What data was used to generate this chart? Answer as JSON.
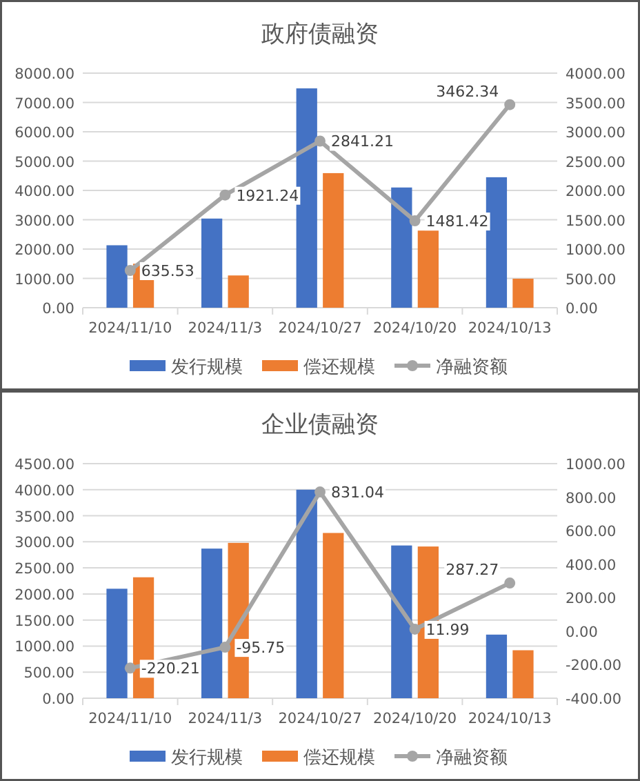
{
  "chart_data": [
    {
      "type": "bar",
      "title": "政府债融资",
      "categories": [
        "2024/11/10",
        "2024/11/3",
        "2024/10/27",
        "2024/10/20",
        "2024/10/13"
      ],
      "series": [
        {
          "name": "发行规模",
          "color": "#4472c4",
          "values": [
            2130,
            3040,
            7480,
            4100,
            4450
          ]
        },
        {
          "name": "偿还规模",
          "color": "#ed7d31",
          "values": [
            1500,
            1100,
            4590,
            2630,
            990
          ]
        },
        {
          "name": "净融资额",
          "type": "line",
          "axis": "y2",
          "color": "#a5a5a5",
          "marker": "circle",
          "values": [
            635.53,
            1921.24,
            2841.21,
            1481.42,
            3462.34
          ],
          "value_labels": [
            "635.53",
            "1921.24",
            "2841.21",
            "1481.42",
            "3462.34"
          ]
        }
      ],
      "ylim": [
        0,
        8000
      ],
      "yticks": [
        {
          "value": 0,
          "label": "0.00"
        },
        {
          "value": 1000,
          "label": "1000.00"
        },
        {
          "value": 2000,
          "label": "2000.00"
        },
        {
          "value": 3000,
          "label": "3000.00"
        },
        {
          "value": 4000,
          "label": "4000.00"
        },
        {
          "value": 5000,
          "label": "5000.00"
        },
        {
          "value": 6000,
          "label": "6000.00"
        },
        {
          "value": 7000,
          "label": "7000.00"
        },
        {
          "value": 8000,
          "label": "8000.00"
        }
      ],
      "y2lim": [
        0,
        4000
      ],
      "y2ticks": [
        {
          "value": 0,
          "label": "0.00"
        },
        {
          "value": 500,
          "label": "500.00"
        },
        {
          "value": 1000,
          "label": "1000.00"
        },
        {
          "value": 1500,
          "label": "1500.00"
        },
        {
          "value": 2000,
          "label": "2000.00"
        },
        {
          "value": 2500,
          "label": "2500.00"
        },
        {
          "value": 3000,
          "label": "3000.00"
        },
        {
          "value": 3500,
          "label": "3500.00"
        },
        {
          "value": 4000,
          "label": "4000.00"
        }
      ],
      "grid": "y",
      "legend": "bottom"
    },
    {
      "type": "bar",
      "title": "企业债融资",
      "categories": [
        "2024/11/10",
        "2024/11/3",
        "2024/10/27",
        "2024/10/20",
        "2024/10/13"
      ],
      "series": [
        {
          "name": "发行规模",
          "color": "#4472c4",
          "values": [
            2100,
            2870,
            4000,
            2930,
            1220
          ]
        },
        {
          "name": "偿还规模",
          "color": "#ed7d31",
          "values": [
            2320,
            2980,
            3170,
            2910,
            920
          ]
        },
        {
          "name": "净融资额",
          "type": "line",
          "axis": "y2",
          "color": "#a5a5a5",
          "marker": "circle",
          "values": [
            -220.21,
            -95.75,
            831.04,
            11.99,
            287.27
          ],
          "value_labels": [
            "-220.21",
            "-95.75",
            "831.04",
            "11.99",
            "287.27"
          ]
        }
      ],
      "ylim": [
        0,
        4500
      ],
      "yticks": [
        {
          "value": 0,
          "label": "0.00"
        },
        {
          "value": 500,
          "label": "500.00"
        },
        {
          "value": 1000,
          "label": "1000.00"
        },
        {
          "value": 1500,
          "label": "1500.00"
        },
        {
          "value": 2000,
          "label": "2000.00"
        },
        {
          "value": 2500,
          "label": "2500.00"
        },
        {
          "value": 3000,
          "label": "3000.00"
        },
        {
          "value": 3500,
          "label": "3500.00"
        },
        {
          "value": 4000,
          "label": "4000.00"
        },
        {
          "value": 4500,
          "label": "4500.00"
        }
      ],
      "y2lim": [
        -400,
        1000
      ],
      "y2ticks": [
        {
          "value": -400,
          "label": "-400.00"
        },
        {
          "value": -200,
          "label": "-200.00"
        },
        {
          "value": 0,
          "label": "0.00"
        },
        {
          "value": 200,
          "label": "200.00"
        },
        {
          "value": 400,
          "label": "400.00"
        },
        {
          "value": 600,
          "label": "600.00"
        },
        {
          "value": 800,
          "label": "800.00"
        },
        {
          "value": 1000,
          "label": "1000.00"
        }
      ],
      "grid": "y",
      "legend": "bottom"
    }
  ]
}
